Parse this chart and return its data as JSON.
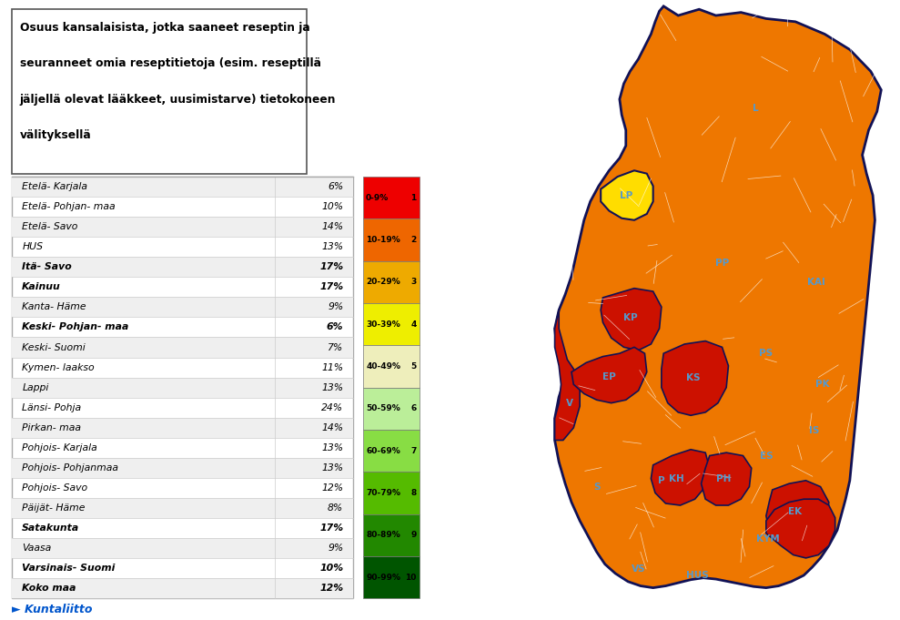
{
  "title_lines": [
    "Osuus kansalaisista, jotka saaneet reseptin ja",
    "seuranneet omia reseptitietoja (esim. reseptillä",
    "jäljellä olevat lääkkeet, uusimistarve) tietokoneen",
    "välityksellä"
  ],
  "regions": [
    [
      "Etelä- Karjala",
      "6%",
      false
    ],
    [
      "Etelä- Pohjan- maa",
      "10%",
      false
    ],
    [
      "Etelä- Savo",
      "14%",
      false
    ],
    [
      "HUS",
      "13%",
      false
    ],
    [
      "Itä- Savo",
      "17%",
      true
    ],
    [
      "Kainuu",
      "17%",
      true
    ],
    [
      "Kanta- Häme",
      "9%",
      false
    ],
    [
      "Keski- Pohjan- maa",
      "6%",
      true
    ],
    [
      "Keski- Suomi",
      "7%",
      false
    ],
    [
      "Kymen- laakso",
      "11%",
      false
    ],
    [
      "Lappi",
      "13%",
      false
    ],
    [
      "Länsi- Pohja",
      "24%",
      false
    ],
    [
      "Pirkan- maa",
      "14%",
      false
    ],
    [
      "Pohjois- Karjala",
      "13%",
      false
    ],
    [
      "Pohjois- Pohjanmaa",
      "13%",
      false
    ],
    [
      "Pohjois- Savo",
      "12%",
      false
    ],
    [
      "Päijät- Häme",
      "8%",
      false
    ],
    [
      "Satakunta",
      "17%",
      true
    ],
    [
      "Vaasa",
      "9%",
      false
    ],
    [
      "Varsinais- Suomi",
      "10%",
      true
    ],
    [
      "Koko maa",
      "12%",
      true
    ]
  ],
  "legend_ranges": [
    "0-9%",
    "10-19%",
    "20-29%",
    "30-39%",
    "40-49%",
    "50-59%",
    "60-69%",
    "70-79%",
    "80-89%",
    "90-99%"
  ],
  "legend_values": [
    "1",
    "2",
    "3",
    "4",
    "5",
    "6",
    "7",
    "8",
    "9",
    "10"
  ],
  "legend_colors": [
    "#ee0000",
    "#ee6600",
    "#eeaa00",
    "#eeee00",
    "#eeeebb",
    "#bbee99",
    "#88dd44",
    "#55bb00",
    "#228800",
    "#005500"
  ],
  "bg_color": "#ffffff",
  "logo_color": "#0055cc",
  "map_orange": "#ee7700",
  "map_red": "#cc1100",
  "map_yellow": "#ffdd00",
  "map_border_outer": "#111155",
  "map_border_inner": "#111155",
  "label_color": "#5599cc"
}
